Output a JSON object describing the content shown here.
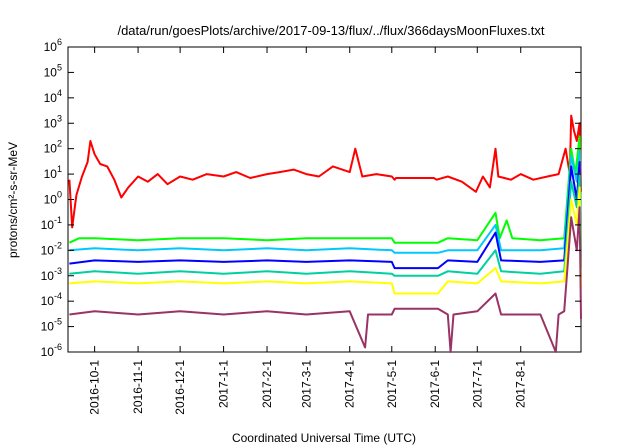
{
  "chart_data": {
    "type": "line",
    "title": "/data/run/goesPlots/archive/2017-09-13/flux/../flux/366daysMoonFluxes.txt",
    "xlabel": "Coordinated Universal Time (UTC)",
    "ylabel": "protons/cm²-s-sr-MeV",
    "y_scale": "log",
    "ylim": [
      1e-06,
      1000000.0
    ],
    "y_ticks": [
      {
        "exp": -6,
        "label": "10-6"
      },
      {
        "exp": -5,
        "label": "10-5"
      },
      {
        "exp": -4,
        "label": "10-4"
      },
      {
        "exp": -3,
        "label": "10-3"
      },
      {
        "exp": -2,
        "label": "10-2"
      },
      {
        "exp": -1,
        "label": "10-1"
      },
      {
        "exp": 0,
        "label": "100"
      },
      {
        "exp": 1,
        "label": "101"
      },
      {
        "exp": 2,
        "label": "102"
      },
      {
        "exp": 3,
        "label": "103"
      },
      {
        "exp": 4,
        "label": "104"
      },
      {
        "exp": 5,
        "label": "105"
      },
      {
        "exp": 6,
        "label": "106"
      }
    ],
    "xlim": [
      "2016-09-12",
      "2017-09-13"
    ],
    "x_ticks": [
      {
        "date": "2016-10-01",
        "label": "2016-10-1"
      },
      {
        "date": "2016-11-01",
        "label": "2016-11-1"
      },
      {
        "date": "2016-12-01",
        "label": "2016-12-1"
      },
      {
        "date": "2017-01-01",
        "label": "2017-1-1"
      },
      {
        "date": "2017-02-01",
        "label": "2017-2-1"
      },
      {
        "date": "2017-03-01",
        "label": "2017-3-1"
      },
      {
        "date": "2017-04-01",
        "label": "2017-4-1"
      },
      {
        "date": "2017-05-01",
        "label": "2017-5-1"
      },
      {
        "date": "2017-06-01",
        "label": "2017-6-1"
      },
      {
        "date": "2017-07-01",
        "label": "2017-7-1"
      },
      {
        "date": "2017-08-01",
        "label": "2017-8-1"
      }
    ],
    "grid": false,
    "legend": "none",
    "series": [
      {
        "color": "#ff0000",
        "points": [
          [
            "2016-09-13",
            6
          ],
          [
            "2016-09-15",
            0.08
          ],
          [
            "2016-09-18",
            1.5
          ],
          [
            "2016-09-22",
            8
          ],
          [
            "2016-09-26",
            30
          ],
          [
            "2016-09-28",
            200
          ],
          [
            "2016-10-01",
            60
          ],
          [
            "2016-10-05",
            25
          ],
          [
            "2016-10-10",
            20
          ],
          [
            "2016-10-15",
            6
          ],
          [
            "2016-10-20",
            1.2
          ],
          [
            "2016-10-25",
            3
          ],
          [
            "2016-11-01",
            8
          ],
          [
            "2016-11-08",
            5
          ],
          [
            "2016-11-15",
            10
          ],
          [
            "2016-11-22",
            4
          ],
          [
            "2016-12-01",
            8
          ],
          [
            "2016-12-10",
            6
          ],
          [
            "2016-12-20",
            10
          ],
          [
            "2017-01-01",
            8
          ],
          [
            "2017-01-10",
            12
          ],
          [
            "2017-01-20",
            7
          ],
          [
            "2017-02-01",
            10
          ],
          [
            "2017-02-10",
            12
          ],
          [
            "2017-02-20",
            15
          ],
          [
            "2017-03-01",
            10
          ],
          [
            "2017-03-10",
            8
          ],
          [
            "2017-03-20",
            20
          ],
          [
            "2017-04-01",
            12
          ],
          [
            "2017-04-05",
            100
          ],
          [
            "2017-04-10",
            8
          ],
          [
            "2017-04-20",
            10
          ],
          [
            "2017-05-01",
            8
          ],
          [
            "2017-05-03",
            6
          ],
          [
            "2017-05-04",
            7
          ],
          [
            "2017-05-31",
            7
          ],
          [
            "2017-06-02",
            6
          ],
          [
            "2017-06-10",
            8
          ],
          [
            "2017-06-20",
            5
          ],
          [
            "2017-06-30",
            2
          ],
          [
            "2017-07-05",
            8
          ],
          [
            "2017-07-10",
            3
          ],
          [
            "2017-07-14",
            100
          ],
          [
            "2017-07-16",
            8
          ],
          [
            "2017-07-25",
            6
          ],
          [
            "2017-08-01",
            10
          ],
          [
            "2017-08-10",
            6
          ],
          [
            "2017-08-20",
            8
          ],
          [
            "2017-08-28",
            10
          ],
          [
            "2017-09-02",
            100
          ],
          [
            "2017-09-05",
            10
          ],
          [
            "2017-09-06",
            2000
          ],
          [
            "2017-09-08",
            500
          ],
          [
            "2017-09-10",
            200
          ],
          [
            "2017-09-12",
            1000
          ],
          [
            "2017-09-13",
            2
          ]
        ]
      },
      {
        "color": "#00ff00",
        "points": [
          [
            "2016-09-13",
            0.02
          ],
          [
            "2016-09-20",
            0.03
          ],
          [
            "2016-10-01",
            0.03
          ],
          [
            "2016-11-01",
            0.025
          ],
          [
            "2016-12-01",
            0.03
          ],
          [
            "2017-01-01",
            0.03
          ],
          [
            "2017-02-01",
            0.025
          ],
          [
            "2017-03-01",
            0.03
          ],
          [
            "2017-04-01",
            0.03
          ],
          [
            "2017-05-01",
            0.03
          ],
          [
            "2017-05-03",
            0.02
          ],
          [
            "2017-06-03",
            0.02
          ],
          [
            "2017-06-10",
            0.03
          ],
          [
            "2017-07-01",
            0.025
          ],
          [
            "2017-07-14",
            0.3
          ],
          [
            "2017-07-17",
            0.03
          ],
          [
            "2017-07-22",
            0.15
          ],
          [
            "2017-07-26",
            0.03
          ],
          [
            "2017-08-15",
            0.025
          ],
          [
            "2017-09-01",
            0.03
          ],
          [
            "2017-09-06",
            100
          ],
          [
            "2017-09-09",
            10
          ],
          [
            "2017-09-12",
            300
          ],
          [
            "2017-09-13",
            0.01
          ]
        ]
      },
      {
        "color": "#00c8ff",
        "points": [
          [
            "2016-09-13",
            0.01
          ],
          [
            "2016-10-01",
            0.012
          ],
          [
            "2016-11-01",
            0.01
          ],
          [
            "2016-12-01",
            0.012
          ],
          [
            "2017-01-01",
            0.01
          ],
          [
            "2017-02-01",
            0.012
          ],
          [
            "2017-03-01",
            0.01
          ],
          [
            "2017-04-01",
            0.012
          ],
          [
            "2017-05-01",
            0.01
          ],
          [
            "2017-05-03",
            0.008
          ],
          [
            "2017-06-03",
            0.008
          ],
          [
            "2017-06-10",
            0.01
          ],
          [
            "2017-07-01",
            0.01
          ],
          [
            "2017-07-14",
            0.1
          ],
          [
            "2017-07-18",
            0.01
          ],
          [
            "2017-08-15",
            0.01
          ],
          [
            "2017-09-01",
            0.012
          ],
          [
            "2017-09-06",
            50
          ],
          [
            "2017-09-10",
            5
          ],
          [
            "2017-09-12",
            80
          ],
          [
            "2017-09-13",
            0.005
          ]
        ]
      },
      {
        "color": "#0000ff",
        "points": [
          [
            "2016-09-13",
            0.003
          ],
          [
            "2016-10-01",
            0.004
          ],
          [
            "2016-11-01",
            0.0035
          ],
          [
            "2016-12-01",
            0.004
          ],
          [
            "2017-01-01",
            0.0035
          ],
          [
            "2017-02-01",
            0.004
          ],
          [
            "2017-03-01",
            0.0035
          ],
          [
            "2017-04-01",
            0.004
          ],
          [
            "2017-05-01",
            0.0035
          ],
          [
            "2017-05-03",
            0.002
          ],
          [
            "2017-06-03",
            0.002
          ],
          [
            "2017-06-10",
            0.004
          ],
          [
            "2017-07-01",
            0.0035
          ],
          [
            "2017-07-14",
            0.05
          ],
          [
            "2017-07-18",
            0.004
          ],
          [
            "2017-08-15",
            0.0035
          ],
          [
            "2017-09-01",
            0.004
          ],
          [
            "2017-09-06",
            20
          ],
          [
            "2017-09-10",
            1
          ],
          [
            "2017-09-12",
            30
          ],
          [
            "2017-09-13",
            0.002
          ]
        ]
      },
      {
        "color": "#00d0a0",
        "points": [
          [
            "2016-09-13",
            0.0012
          ],
          [
            "2016-10-01",
            0.0015
          ],
          [
            "2016-11-01",
            0.0012
          ],
          [
            "2016-12-01",
            0.0015
          ],
          [
            "2017-01-01",
            0.0012
          ],
          [
            "2017-02-01",
            0.0015
          ],
          [
            "2017-03-01",
            0.0012
          ],
          [
            "2017-04-01",
            0.0015
          ],
          [
            "2017-05-01",
            0.0012
          ],
          [
            "2017-05-03",
            0.001
          ],
          [
            "2017-06-03",
            0.001
          ],
          [
            "2017-06-10",
            0.0015
          ],
          [
            "2017-07-01",
            0.0012
          ],
          [
            "2017-07-14",
            0.01
          ],
          [
            "2017-07-18",
            0.0015
          ],
          [
            "2017-08-15",
            0.0012
          ],
          [
            "2017-09-01",
            0.0015
          ],
          [
            "2017-09-06",
            5
          ],
          [
            "2017-09-10",
            0.5
          ],
          [
            "2017-09-12",
            10
          ],
          [
            "2017-09-13",
            0.0008
          ]
        ]
      },
      {
        "color": "#ffff00",
        "points": [
          [
            "2016-09-13",
            0.0005
          ],
          [
            "2016-10-01",
            0.0006
          ],
          [
            "2016-11-01",
            0.0005
          ],
          [
            "2016-12-01",
            0.0006
          ],
          [
            "2017-01-01",
            0.0005
          ],
          [
            "2017-02-01",
            0.0006
          ],
          [
            "2017-03-01",
            0.0005
          ],
          [
            "2017-04-01",
            0.0006
          ],
          [
            "2017-05-01",
            0.0005
          ],
          [
            "2017-05-03",
            0.0002
          ],
          [
            "2017-06-03",
            0.0002
          ],
          [
            "2017-06-10",
            0.0006
          ],
          [
            "2017-07-01",
            0.0005
          ],
          [
            "2017-07-14",
            0.002
          ],
          [
            "2017-07-18",
            0.0006
          ],
          [
            "2017-08-15",
            0.0005
          ],
          [
            "2017-09-01",
            0.0006
          ],
          [
            "2017-09-06",
            1
          ],
          [
            "2017-09-10",
            0.1
          ],
          [
            "2017-09-12",
            3
          ],
          [
            "2017-09-13",
            0.0003
          ]
        ]
      },
      {
        "color": "#993366",
        "points": [
          [
            "2016-09-13",
            3e-05
          ],
          [
            "2016-10-01",
            4e-05
          ],
          [
            "2016-11-01",
            3e-05
          ],
          [
            "2016-12-01",
            4e-05
          ],
          [
            "2017-01-01",
            3e-05
          ],
          [
            "2017-02-01",
            4e-05
          ],
          [
            "2017-03-01",
            3e-05
          ],
          [
            "2017-04-01",
            4e-05
          ],
          [
            "2017-04-12",
            1.5e-06
          ],
          [
            "2017-04-14",
            3e-05
          ],
          [
            "2017-05-01",
            3e-05
          ],
          [
            "2017-05-03",
            5e-05
          ],
          [
            "2017-06-03",
            5e-05
          ],
          [
            "2017-06-10",
            3e-05
          ],
          [
            "2017-06-12",
            1e-06
          ],
          [
            "2017-06-14",
            3e-05
          ],
          [
            "2017-07-01",
            4e-05
          ],
          [
            "2017-07-14",
            0.0002
          ],
          [
            "2017-07-18",
            3e-05
          ],
          [
            "2017-08-15",
            3e-05
          ],
          [
            "2017-08-26",
            1e-06
          ],
          [
            "2017-08-28",
            3e-05
          ],
          [
            "2017-09-01",
            4e-05
          ],
          [
            "2017-09-06",
            0.2
          ],
          [
            "2017-09-10",
            0.01
          ],
          [
            "2017-09-12",
            0.5
          ],
          [
            "2017-09-13",
            2e-05
          ]
        ]
      }
    ]
  }
}
